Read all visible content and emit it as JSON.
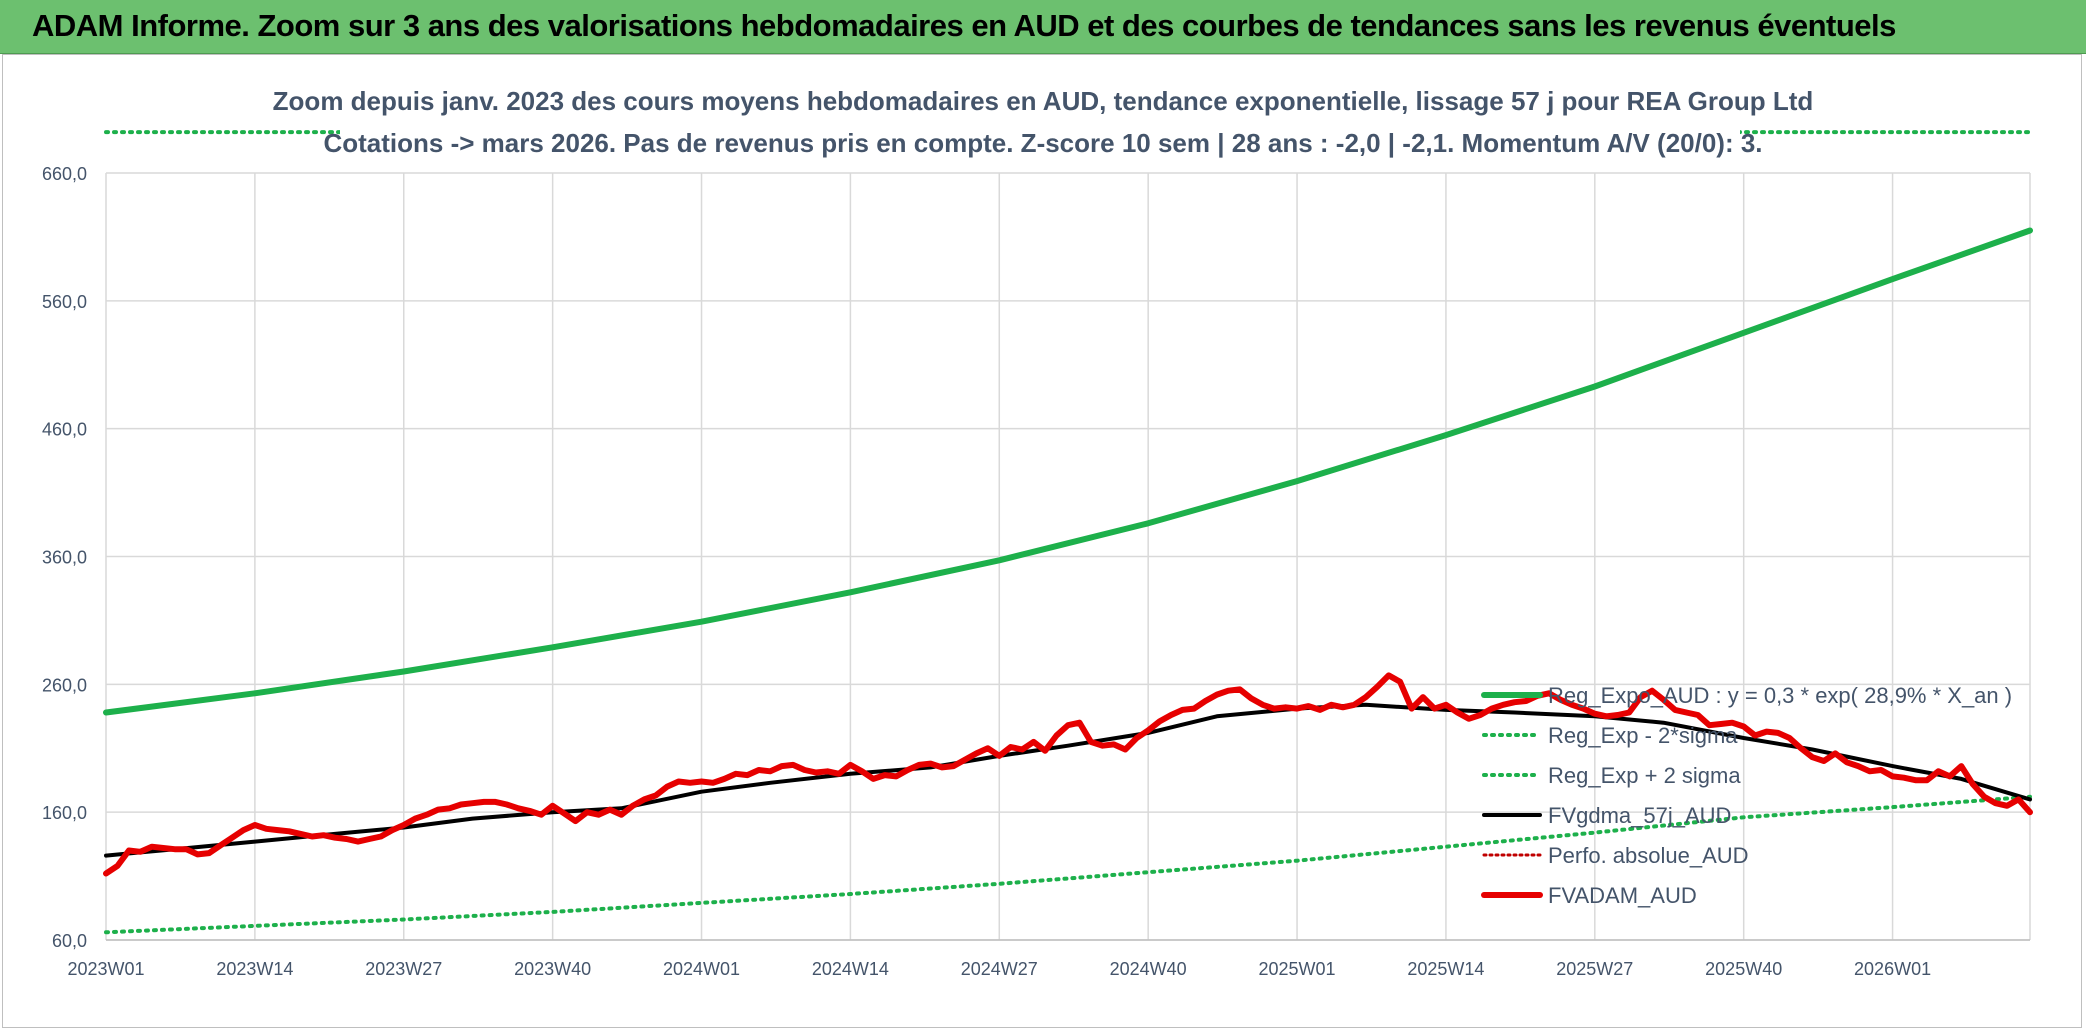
{
  "banner": {
    "title": "ADAM Informe. Zoom sur 3 ans des valorisations hebdomadaires en AUD et des courbes de tendances sans les revenus éventuels"
  },
  "colors": {
    "banner_bg": "#6cc06f",
    "trend_green": "#1db04b",
    "price_red": "#e60000",
    "avg_black": "#000000",
    "text": "#44546a",
    "grid": "#d9d9d9"
  },
  "chart_data": {
    "type": "line",
    "title_line1": "Zoom depuis janv. 2023 des cours moyens hebdomadaires en AUD, tendance exponentielle, lissage 57 j pour REA Group Ltd",
    "title_line2": "Cotations -> mars 2026. Pas de revenus pris en compte. Z-score 10 sem | 28 ans : -2,0 | -2,1. Momentum A/V (20/0): 3.",
    "ylim": [
      60,
      660
    ],
    "yticks": [
      "60,0",
      "160,0",
      "260,0",
      "360,0",
      "460,0",
      "560,0",
      "660,0"
    ],
    "ytick_values": [
      60,
      160,
      260,
      360,
      460,
      560,
      660
    ],
    "week_index_range": [
      0,
      168
    ],
    "xticks": [
      {
        "label": "2023W01",
        "week_index": 0
      },
      {
        "label": "2023W14",
        "week_index": 13
      },
      {
        "label": "2023W27",
        "week_index": 26
      },
      {
        "label": "2023W40",
        "week_index": 39
      },
      {
        "label": "2024W01",
        "week_index": 52
      },
      {
        "label": "2024W14",
        "week_index": 65
      },
      {
        "label": "2024W27",
        "week_index": 78
      },
      {
        "label": "2024W40",
        "week_index": 91
      },
      {
        "label": "2025W01",
        "week_index": 104
      },
      {
        "label": "2025W14",
        "week_index": 117
      },
      {
        "label": "2025W27",
        "week_index": 130
      },
      {
        "label": "2025W40",
        "week_index": 143
      },
      {
        "label": "2026W01",
        "week_index": 156
      }
    ],
    "grid": true,
    "legend_position": "right",
    "series": [
      {
        "name": "Reg_Expo_AUD : y = 0,3 * exp( 28,9% *  X_an )",
        "style": "solid-thick",
        "color": "#1db04b",
        "points": [
          [
            0,
            238
          ],
          [
            13,
            253
          ],
          [
            26,
            270
          ],
          [
            39,
            289
          ],
          [
            52,
            309
          ],
          [
            65,
            332
          ],
          [
            78,
            357
          ],
          [
            91,
            386
          ],
          [
            104,
            419
          ],
          [
            117,
            455
          ],
          [
            130,
            493
          ],
          [
            143,
            535
          ],
          [
            156,
            577
          ],
          [
            168,
            615
          ]
        ]
      },
      {
        "name": "Reg_Exp - 2*sigma",
        "style": "dotted",
        "color": "#1db04b",
        "points": [
          [
            0,
            66
          ],
          [
            13,
            71
          ],
          [
            26,
            76
          ],
          [
            39,
            82
          ],
          [
            52,
            89
          ],
          [
            65,
            96
          ],
          [
            78,
            104
          ],
          [
            91,
            113
          ],
          [
            104,
            122
          ],
          [
            117,
            133
          ],
          [
            130,
            144
          ],
          [
            143,
            156
          ],
          [
            156,
            164
          ],
          [
            168,
            172
          ]
        ]
      },
      {
        "name": "Reg_Exp + 2 sigma",
        "style": "dotted",
        "color": "#1db04b",
        "points": [
          [
            0,
            692
          ],
          [
            168,
            692
          ]
        ]
      },
      {
        "name": "FVgdma_57j_AUD",
        "style": "solid",
        "color": "#000000",
        "points": [
          [
            0,
            126
          ],
          [
            6,
            131
          ],
          [
            13,
            137
          ],
          [
            20,
            143
          ],
          [
            26,
            148
          ],
          [
            32,
            155
          ],
          [
            39,
            160
          ],
          [
            45,
            163
          ],
          [
            52,
            176
          ],
          [
            58,
            183
          ],
          [
            65,
            190
          ],
          [
            72,
            195
          ],
          [
            78,
            204
          ],
          [
            84,
            212
          ],
          [
            91,
            222
          ],
          [
            97,
            235
          ],
          [
            104,
            241
          ],
          [
            110,
            244
          ],
          [
            117,
            240
          ],
          [
            123,
            238
          ],
          [
            130,
            235
          ],
          [
            136,
            230
          ],
          [
            143,
            218
          ],
          [
            149,
            209
          ],
          [
            156,
            196
          ],
          [
            162,
            186
          ],
          [
            168,
            170
          ]
        ]
      },
      {
        "name": "Perfo. absolue_AUD",
        "style": "dotted-thin",
        "color": "#c00000",
        "points": []
      },
      {
        "name": "FVADAM_AUD",
        "style": "solid-thick",
        "color": "#e60000",
        "points": [
          [
            0,
            112
          ],
          [
            1,
            118
          ],
          [
            2,
            130
          ],
          [
            3,
            129
          ],
          [
            4,
            133
          ],
          [
            5,
            132
          ],
          [
            6,
            131
          ],
          [
            7,
            131
          ],
          [
            8,
            127
          ],
          [
            9,
            128
          ],
          [
            10,
            134
          ],
          [
            11,
            140
          ],
          [
            12,
            146
          ],
          [
            13,
            150
          ],
          [
            14,
            147
          ],
          [
            15,
            146
          ],
          [
            16,
            145
          ],
          [
            17,
            143
          ],
          [
            18,
            141
          ],
          [
            19,
            142
          ],
          [
            20,
            140
          ],
          [
            21,
            139
          ],
          [
            22,
            137
          ],
          [
            23,
            139
          ],
          [
            24,
            141
          ],
          [
            25,
            146
          ],
          [
            26,
            150
          ],
          [
            27,
            155
          ],
          [
            28,
            158
          ],
          [
            29,
            162
          ],
          [
            30,
            163
          ],
          [
            31,
            166
          ],
          [
            32,
            167
          ],
          [
            33,
            168
          ],
          [
            34,
            168
          ],
          [
            35,
            166
          ],
          [
            36,
            163
          ],
          [
            37,
            161
          ],
          [
            38,
            158
          ],
          [
            39,
            165
          ],
          [
            40,
            159
          ],
          [
            41,
            153
          ],
          [
            42,
            160
          ],
          [
            43,
            158
          ],
          [
            44,
            162
          ],
          [
            45,
            158
          ],
          [
            46,
            165
          ],
          [
            47,
            170
          ],
          [
            48,
            173
          ],
          [
            49,
            180
          ],
          [
            50,
            184
          ],
          [
            51,
            183
          ],
          [
            52,
            184
          ],
          [
            53,
            183
          ],
          [
            54,
            186
          ],
          [
            55,
            190
          ],
          [
            56,
            189
          ],
          [
            57,
            193
          ],
          [
            58,
            192
          ],
          [
            59,
            196
          ],
          [
            60,
            197
          ],
          [
            61,
            193
          ],
          [
            62,
            191
          ],
          [
            63,
            192
          ],
          [
            64,
            190
          ],
          [
            65,
            197
          ],
          [
            66,
            192
          ],
          [
            67,
            186
          ],
          [
            68,
            189
          ],
          [
            69,
            188
          ],
          [
            70,
            193
          ],
          [
            71,
            197
          ],
          [
            72,
            198
          ],
          [
            73,
            195
          ],
          [
            74,
            196
          ],
          [
            75,
            201
          ],
          [
            76,
            206
          ],
          [
            77,
            210
          ],
          [
            78,
            204
          ],
          [
            79,
            211
          ],
          [
            80,
            209
          ],
          [
            81,
            215
          ],
          [
            82,
            208
          ],
          [
            83,
            220
          ],
          [
            84,
            228
          ],
          [
            85,
            230
          ],
          [
            86,
            215
          ],
          [
            87,
            212
          ],
          [
            88,
            213
          ],
          [
            89,
            209
          ],
          [
            90,
            218
          ],
          [
            91,
            224
          ],
          [
            92,
            231
          ],
          [
            93,
            236
          ],
          [
            94,
            240
          ],
          [
            95,
            241
          ],
          [
            96,
            247
          ],
          [
            97,
            252
          ],
          [
            98,
            255
          ],
          [
            99,
            256
          ],
          [
            100,
            249
          ],
          [
            101,
            244
          ],
          [
            102,
            241
          ],
          [
            103,
            242
          ],
          [
            104,
            241
          ],
          [
            105,
            243
          ],
          [
            106,
            240
          ],
          [
            107,
            244
          ],
          [
            108,
            242
          ],
          [
            109,
            244
          ],
          [
            110,
            250
          ],
          [
            111,
            258
          ],
          [
            112,
            267
          ],
          [
            113,
            262
          ],
          [
            114,
            241
          ],
          [
            115,
            250
          ],
          [
            116,
            241
          ],
          [
            117,
            244
          ],
          [
            118,
            238
          ],
          [
            119,
            233
          ],
          [
            120,
            236
          ],
          [
            121,
            241
          ],
          [
            122,
            244
          ],
          [
            123,
            246
          ],
          [
            124,
            247
          ],
          [
            125,
            251
          ],
          [
            126,
            253
          ],
          [
            127,
            248
          ],
          [
            128,
            244
          ],
          [
            129,
            241
          ],
          [
            130,
            237
          ],
          [
            131,
            235
          ],
          [
            132,
            236
          ],
          [
            133,
            238
          ],
          [
            134,
            250
          ],
          [
            135,
            255
          ],
          [
            136,
            248
          ],
          [
            137,
            240
          ],
          [
            138,
            238
          ],
          [
            139,
            236
          ],
          [
            140,
            228
          ],
          [
            141,
            229
          ],
          [
            142,
            230
          ],
          [
            143,
            227
          ],
          [
            144,
            220
          ],
          [
            145,
            223
          ],
          [
            146,
            222
          ],
          [
            147,
            218
          ],
          [
            148,
            210
          ],
          [
            149,
            203
          ],
          [
            150,
            200
          ],
          [
            151,
            206
          ],
          [
            152,
            199
          ],
          [
            153,
            196
          ],
          [
            154,
            192
          ],
          [
            155,
            193
          ],
          [
            156,
            188
          ],
          [
            157,
            187
          ],
          [
            158,
            185
          ],
          [
            159,
            185
          ],
          [
            160,
            192
          ],
          [
            161,
            188
          ],
          [
            162,
            196
          ],
          [
            163,
            182
          ],
          [
            164,
            172
          ],
          [
            165,
            167
          ],
          [
            166,
            165
          ],
          [
            167,
            170
          ],
          [
            168,
            160
          ]
        ]
      }
    ]
  }
}
